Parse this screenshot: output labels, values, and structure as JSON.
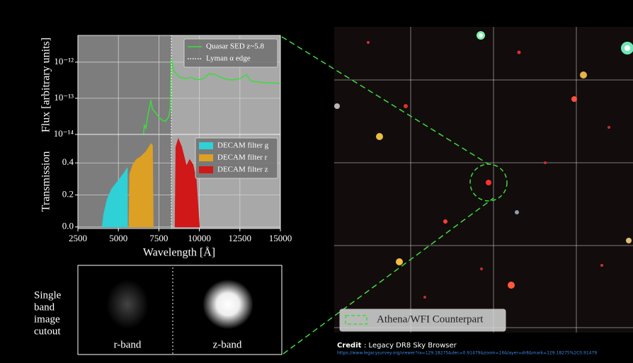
{
  "chart_data": [
    {
      "type": "line",
      "y_label": "Flux [arbitrary units]",
      "log_y": true,
      "grid": true,
      "xlim": [
        2500,
        15000
      ],
      "ylim": [
        1e-14,
        5.5e-12
      ],
      "yticks": [
        {
          "value": 1e-14,
          "label": "10⁻¹⁴"
        },
        {
          "value": 1e-13,
          "label": "10⁻¹³"
        },
        {
          "value": 1e-12,
          "label": "10⁻¹²"
        }
      ],
      "legend": "upper right",
      "series": [
        {
          "name": "Quasar SED z~5.8",
          "color": "#3ddc3d",
          "x": [
            6550,
            6600,
            6700,
            6800,
            6900,
            7000,
            7100,
            7300,
            7500,
            7700,
            7900,
            8100,
            8200,
            8270,
            8400,
            8600,
            8800,
            9200,
            9500,
            9700,
            10000,
            10300,
            10600,
            11000,
            11500,
            12000,
            12500,
            12900,
            13200,
            14000,
            15000
          ],
          "values": [
            1e-14,
            1.8e-14,
            1.5e-14,
            3e-14,
            5e-14,
            9e-14,
            5e-14,
            4e-14,
            3e-14,
            2.5e-14,
            2.3e-14,
            3e-14,
            5e-14,
            1.3e-12,
            6e-13,
            4.5e-13,
            3.8e-13,
            3.5e-13,
            3.8e-13,
            3.4e-13,
            3.3e-13,
            3.6e-13,
            4.8e-13,
            4.5e-13,
            3.5e-13,
            3.2e-13,
            3.5e-13,
            4.5e-13,
            3e-13,
            2.7e-13,
            2.6e-13
          ]
        }
      ],
      "vline": {
        "name": "Lyman α edge",
        "x": 8270,
        "color": "#ffffff"
      }
    },
    {
      "type": "area",
      "y_label": "Transmission",
      "x_label": "Wavelength [Å]",
      "grid": true,
      "xlim": [
        2500,
        15000
      ],
      "ylim": [
        -0.01,
        0.578
      ],
      "xticks": [
        2500,
        5000,
        7500,
        10000,
        12500,
        15000
      ],
      "yticks": [
        {
          "value": 0.0,
          "label": "0.0"
        },
        0.2,
        0.4
      ],
      "legend": "upper right",
      "series": [
        {
          "name": "DECAM filter g",
          "color": "#2fd0d6",
          "x": [
            4000,
            4100,
            4300,
            4600,
            5000,
            5300,
            5500,
            5550,
            5560
          ],
          "values": [
            0,
            0.08,
            0.17,
            0.24,
            0.29,
            0.33,
            0.36,
            0.37,
            0
          ]
        },
        {
          "name": "DECAM filter r",
          "color": "#dca024",
          "x": [
            5650,
            5700,
            5900,
            6100,
            6400,
            6700,
            6900,
            7000,
            7100,
            7150
          ],
          "values": [
            0,
            0.33,
            0.39,
            0.42,
            0.44,
            0.47,
            0.5,
            0.52,
            0.51,
            0
          ]
        },
        {
          "name": "DECAM filter z",
          "color": "#d01818",
          "x": [
            8500,
            8550,
            8700,
            8900,
            9100,
            9200,
            9400,
            9600,
            9800,
            9900,
            10000
          ],
          "values": [
            0,
            0.5,
            0.55,
            0.5,
            0.42,
            0.38,
            0.42,
            0.39,
            0.3,
            0.15,
            0
          ]
        }
      ]
    }
  ],
  "cutout": {
    "caption": [
      "Single",
      "band",
      "image",
      "cutout"
    ],
    "left_label": "r-band",
    "right_label": "z-band"
  },
  "sky": {
    "legend": "Athena/WFI Counterpart",
    "credit_label": "Credit",
    "credit_text": ": Legacy DR8 Sky Browser",
    "url": "https://www.legacysurvey.org/viewer?ra=129.18275&dec=0.91479&zoom=16&layer=dr8&mark=129.18275%2C0.91479"
  }
}
